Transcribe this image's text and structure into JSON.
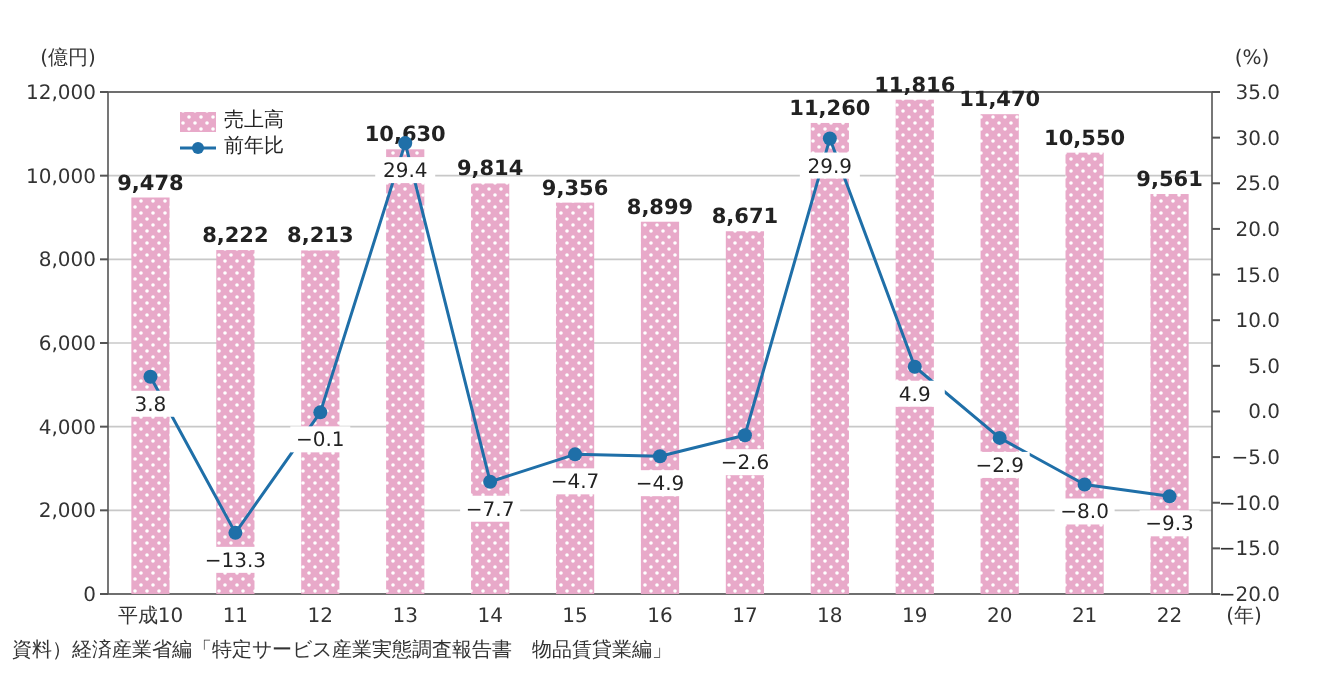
{
  "chart_data": {
    "type": "bar",
    "ylabel": "(億円)",
    "y2label": "(%)",
    "xlabel": "(年)",
    "categories": [
      "平成10",
      "11",
      "12",
      "13",
      "14",
      "15",
      "16",
      "17",
      "18",
      "19",
      "20",
      "21",
      "22"
    ],
    "series": [
      {
        "name": "売上高",
        "color": "#e8a9c9",
        "values": [
          9478,
          8222,
          8213,
          10630,
          9814,
          9356,
          8899,
          8671,
          11260,
          11816,
          11470,
          10550,
          9561
        ],
        "value_labels": [
          "9,478",
          "8,222",
          "8,213",
          "10,630",
          "9,814",
          "9,356",
          "8,899",
          "8,671",
          "11,260",
          "11,816",
          "11,470",
          "10,550",
          "9,561"
        ]
      },
      {
        "name": "前年比",
        "type": "line",
        "axis": "y2",
        "color": "#1f6fa8",
        "marker": "circle",
        "values": [
          3.8,
          -13.3,
          -0.1,
          29.4,
          -7.7,
          -4.7,
          -4.9,
          -2.6,
          29.9,
          4.9,
          -2.9,
          -8.0,
          -9.3
        ],
        "value_labels": [
          "3.8",
          "−13.3",
          "−0.1",
          "29.4",
          "−7.7",
          "−4.7",
          "−4.9",
          "−2.6",
          "29.9",
          "4.9",
          "−2.9",
          "−8.0",
          "−9.3"
        ]
      }
    ],
    "ylim": [
      0,
      12000
    ],
    "yticks": [
      0,
      {
        "value": 2000,
        "label": "2,000"
      },
      {
        "value": 4000,
        "label": "4,000"
      },
      {
        "value": 6000,
        "label": "6,000"
      },
      {
        "value": 8000,
        "label": "8,000"
      },
      {
        "value": 10000,
        "label": "10,000"
      },
      {
        "value": 12000,
        "label": "12,000"
      }
    ],
    "y2lim": [
      -20,
      35
    ],
    "y2ticks": [
      {
        "value": -20,
        "label": "−20.0"
      },
      {
        "value": -15,
        "label": "−15.0"
      },
      {
        "value": -10,
        "label": "−10.0"
      },
      {
        "value": -5,
        "label": "−5.0"
      },
      {
        "value": 0,
        "label": "0.0"
      },
      {
        "value": 5,
        "label": "5.0"
      },
      {
        "value": 10,
        "label": "10.0"
      },
      {
        "value": 15,
        "label": "15.0"
      },
      {
        "value": 20,
        "label": "20.0"
      },
      {
        "value": 25,
        "label": "25.0"
      },
      {
        "value": 30,
        "label": "30.0"
      },
      {
        "value": 35,
        "label": "35.0"
      }
    ],
    "grid": "y",
    "legend": "top left",
    "annotations": [
      "資料）経済産業省編「特定サービス産業実態調査報告書　物品賃貸業編」"
    ]
  }
}
